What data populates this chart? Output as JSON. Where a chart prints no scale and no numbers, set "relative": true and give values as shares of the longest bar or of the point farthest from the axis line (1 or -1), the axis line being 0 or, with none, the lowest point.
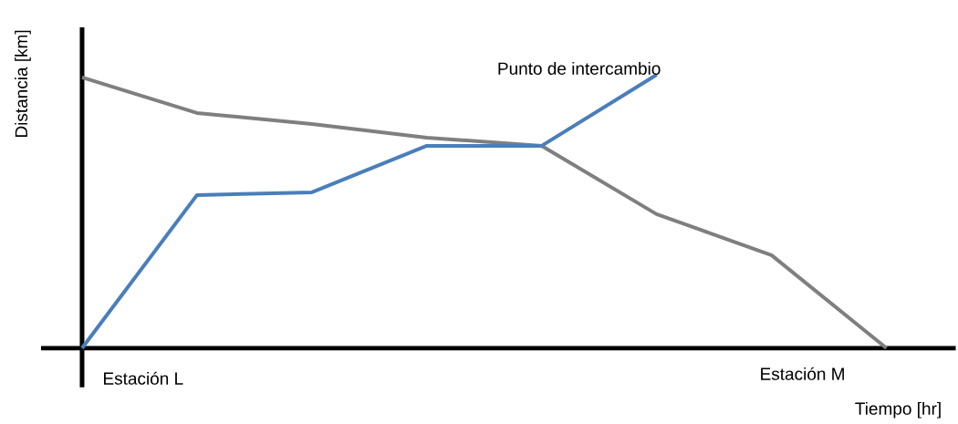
{
  "chart_data": {
    "type": "line",
    "relative": true,
    "ylabel": "Distancia [km]",
    "xlabel": "Tiempo [hr]",
    "annotations": [
      "Punto de intercambio",
      "Estación L",
      "Estación M"
    ],
    "categories": [
      null,
      null,
      null,
      null,
      null,
      null,
      null,
      null
    ],
    "series": [
      {
        "color": "#7f7f7f",
        "values": [
          0.99,
          0.86,
          0.82,
          0.77,
          0.74,
          0.49,
          0.34,
          0
        ]
      },
      {
        "color": "#4a7ebb",
        "values": [
          0,
          0.56,
          0.57,
          0.74,
          0.74,
          1.0,
          null,
          null
        ]
      }
    ]
  }
}
